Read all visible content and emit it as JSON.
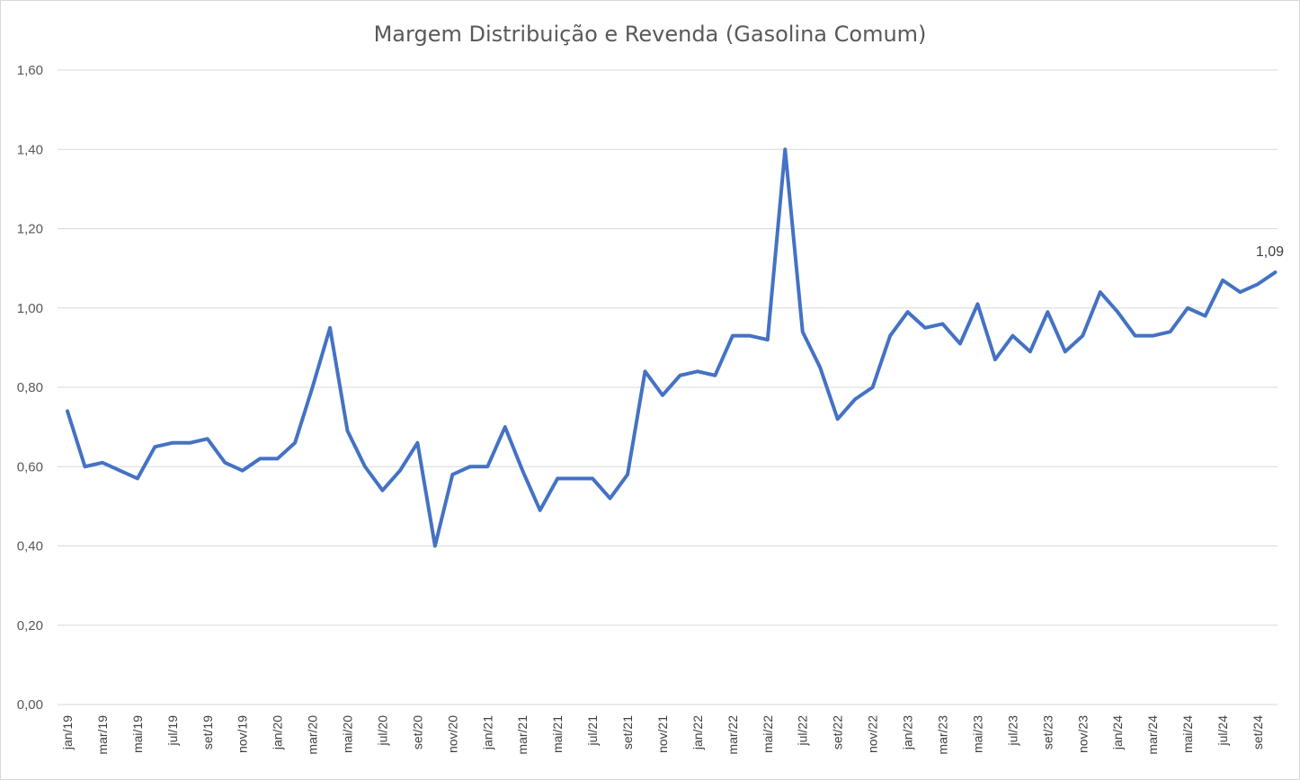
{
  "chart_data": {
    "type": "line",
    "title": "Margem Distribuição e Revenda (Gasolina Comum)",
    "xlabel": "",
    "ylabel": "",
    "ylim": [
      0,
      1.6
    ],
    "yticks": [
      "0,00",
      "0,20",
      "0,40",
      "0,60",
      "0,80",
      "1,00",
      "1,20",
      "1,40",
      "1,60"
    ],
    "grid": true,
    "legend": "none",
    "x": [
      "jan/19",
      "fev/19",
      "mar/19",
      "abr/19",
      "mai/19",
      "jun/19",
      "jul/19",
      "ago/19",
      "set/19",
      "out/19",
      "nov/19",
      "dez/19",
      "jan/20",
      "fev/20",
      "mar/20",
      "abr/20",
      "mai/20",
      "jun/20",
      "jul/20",
      "ago/20",
      "set/20",
      "out/20",
      "nov/20",
      "dez/20",
      "jan/21",
      "fev/21",
      "mar/21",
      "abr/21",
      "mai/21",
      "jun/21",
      "jul/21",
      "ago/21",
      "set/21",
      "out/21",
      "nov/21",
      "dez/21",
      "jan/22",
      "fev/22",
      "mar/22",
      "abr/22",
      "mai/22",
      "jun/22",
      "jul/22",
      "ago/22",
      "set/22",
      "out/22",
      "nov/22",
      "dez/22",
      "jan/23",
      "fev/23",
      "mar/23",
      "abr/23",
      "mai/23",
      "jun/23",
      "jul/23",
      "ago/23",
      "set/23",
      "out/23",
      "nov/23",
      "dez/23",
      "jan/24",
      "fev/24",
      "mar/24",
      "abr/24",
      "mai/24",
      "jun/24",
      "jul/24",
      "ago/24",
      "set/24",
      "out/24"
    ],
    "shown_tick_labels": [
      "jan/19",
      "mar/19",
      "mai/19",
      "jul/19",
      "set/19",
      "nov/19",
      "jan/20",
      "mar/20",
      "mai/20",
      "jul/20",
      "set/20",
      "nov/20",
      "jan/21",
      "mar/21",
      "mai/21",
      "jul/21",
      "set/21",
      "nov/21",
      "jan/22",
      "mar/22",
      "mai/22",
      "jul/22",
      "set/22",
      "nov/22",
      "jan/23",
      "mar/23",
      "mai/23",
      "jul/23",
      "set/23",
      "nov/23",
      "jan/24",
      "mar/24",
      "mai/24",
      "jul/24",
      "set/24"
    ],
    "series": [
      {
        "color": "#4472c4",
        "values": [
          0.74,
          0.6,
          0.61,
          0.59,
          0.57,
          0.65,
          0.66,
          0.66,
          0.67,
          0.61,
          0.59,
          0.62,
          0.62,
          0.66,
          0.8,
          0.95,
          0.69,
          0.6,
          0.54,
          0.59,
          0.66,
          0.4,
          0.58,
          0.6,
          0.6,
          0.7,
          0.59,
          0.49,
          0.57,
          0.57,
          0.57,
          0.52,
          0.58,
          0.84,
          0.78,
          0.83,
          0.84,
          0.83,
          0.93,
          0.93,
          0.92,
          1.4,
          0.94,
          0.85,
          0.72,
          0.77,
          0.8,
          0.93,
          0.99,
          0.95,
          0.96,
          0.91,
          1.01,
          0.87,
          0.93,
          0.89,
          0.99,
          0.89,
          0.93,
          1.04,
          0.99,
          0.93,
          0.93,
          0.94,
          1.0,
          0.98,
          1.07,
          1.04,
          1.06,
          1.09
        ]
      }
    ],
    "data_labels": [
      {
        "index": 69,
        "text": "1,09"
      }
    ]
  }
}
